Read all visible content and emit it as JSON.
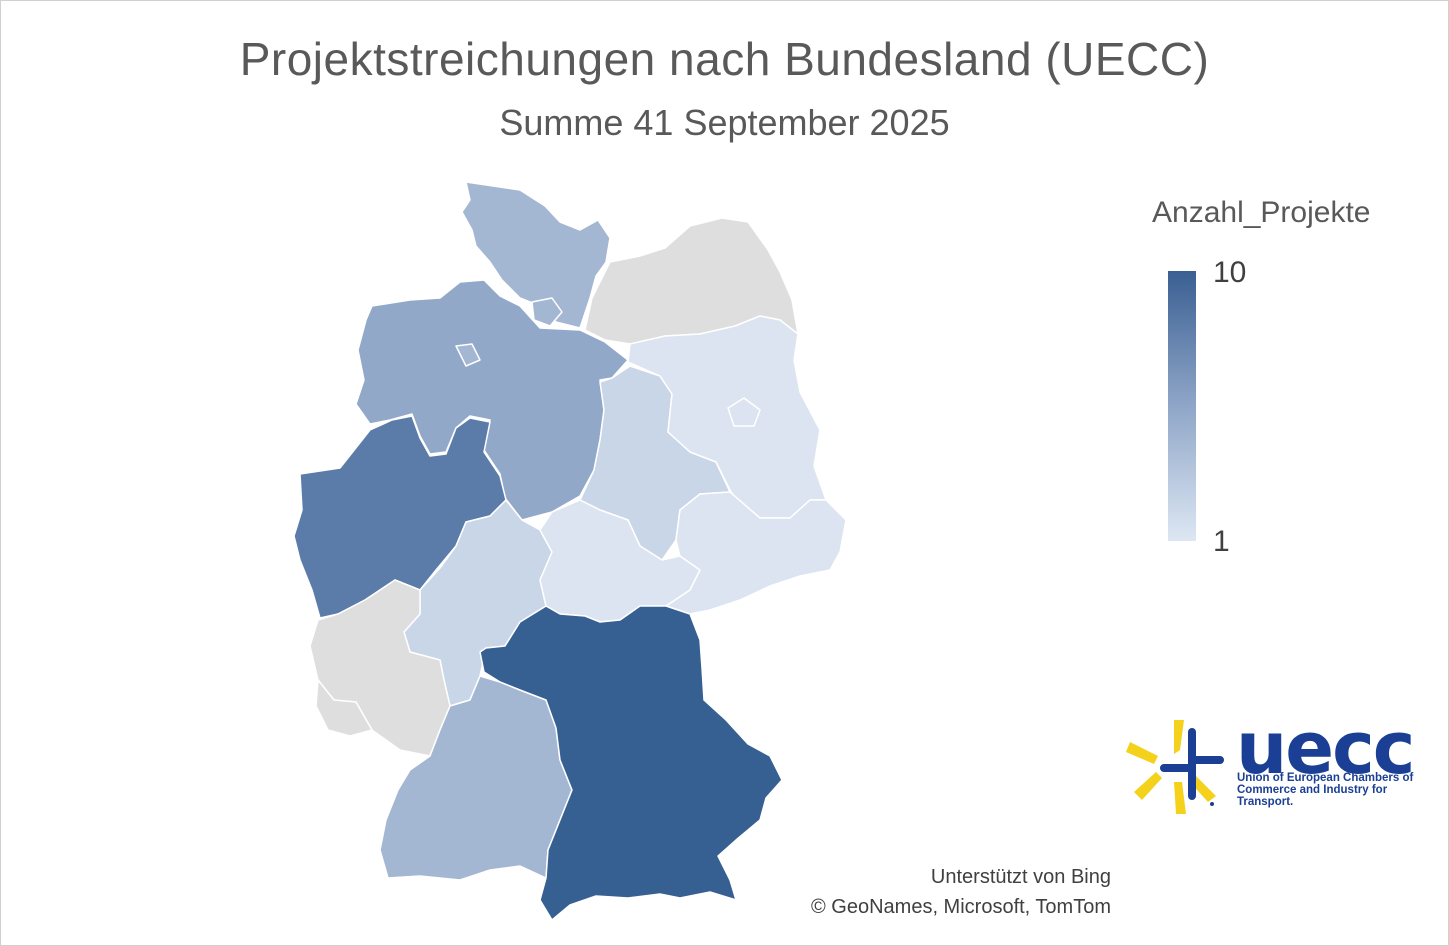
{
  "title": "Projektstreichungen nach Bundesland (UECC)",
  "subtitle": "Summe 41 September 2025",
  "legend": {
    "title": "Anzahl_Projekte",
    "max_label": "10",
    "min_label": "1",
    "color_high": "#3a5f92",
    "color_low": "#dde7f3",
    "no_data_color": "#dedede"
  },
  "credits": {
    "line1": "Unterstützt von Bing",
    "line2": "© GeoNames, Microsoft, TomTom"
  },
  "logo": {
    "name": "uecc",
    "tagline": "Union of European Chambers of Commerce and Industry for Transport.",
    "icon": "star-logo-icon"
  },
  "regions": [
    {
      "name": "Schleswig-Holstein",
      "fill": "#a3b6d2"
    },
    {
      "name": "Mecklenburg-Vorpommern",
      "fill": "#dedede"
    },
    {
      "name": "Niedersachsen",
      "fill": "#92a8c9"
    },
    {
      "name": "Bremen",
      "fill": "#a3b6d2"
    },
    {
      "name": "Hamburg",
      "fill": "#a3b6d2"
    },
    {
      "name": "Brandenburg",
      "fill": "#dbe4f0"
    },
    {
      "name": "Berlin",
      "fill": "#dbe4f0"
    },
    {
      "name": "Sachsen-Anhalt",
      "fill": "#c9d6e7"
    },
    {
      "name": "Nordrhein-Westfalen",
      "fill": "#5b7ca8"
    },
    {
      "name": "Hessen",
      "fill": "#c9d6e7"
    },
    {
      "name": "Thüringen",
      "fill": "#dbe4f0"
    },
    {
      "name": "Sachsen",
      "fill": "#dbe4f0"
    },
    {
      "name": "Rheinland-Pfalz",
      "fill": "#dedede"
    },
    {
      "name": "Saarland",
      "fill": "#dedede"
    },
    {
      "name": "Baden-Württemberg",
      "fill": "#a3b6d2"
    },
    {
      "name": "Bayern",
      "fill": "#365f92"
    }
  ]
}
